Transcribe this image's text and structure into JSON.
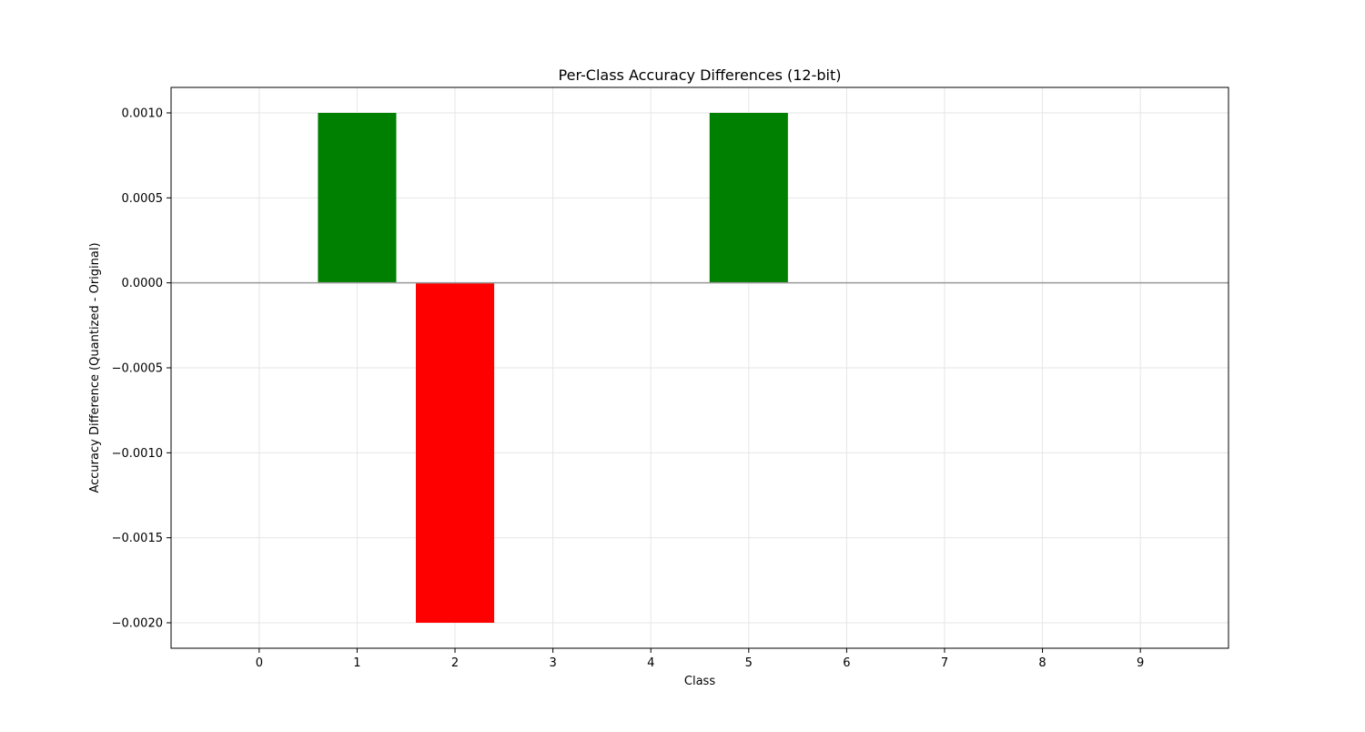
{
  "chart_data": {
    "type": "bar",
    "title": "Per-Class Accuracy Differences (12-bit)",
    "xlabel": "Class",
    "ylabel": "Accuracy Difference (Quantized - Original)",
    "categories": [
      "0",
      "1",
      "2",
      "3",
      "4",
      "5",
      "6",
      "7",
      "8",
      "9"
    ],
    "values": [
      0,
      0.001,
      -0.002,
      0,
      0,
      0.001,
      0,
      0,
      0,
      0
    ],
    "ylim": [
      -0.00215,
      0.00115
    ],
    "yticks": [
      0.001,
      0.0005,
      0,
      -0.0005,
      -0.001,
      -0.0015,
      -0.002
    ],
    "ytick_labels": [
      "0.0010",
      "0.0005",
      "0.0000",
      "−0.0005",
      "−0.0010",
      "−0.0015",
      "−0.0020"
    ],
    "grid": true,
    "legend": "none",
    "zero_line": true,
    "colors": {
      "positive": "#008000",
      "negative": "#ff0000",
      "grid": "#e6e6e6",
      "zero_line": "#999999",
      "axes": "#000000"
    }
  }
}
